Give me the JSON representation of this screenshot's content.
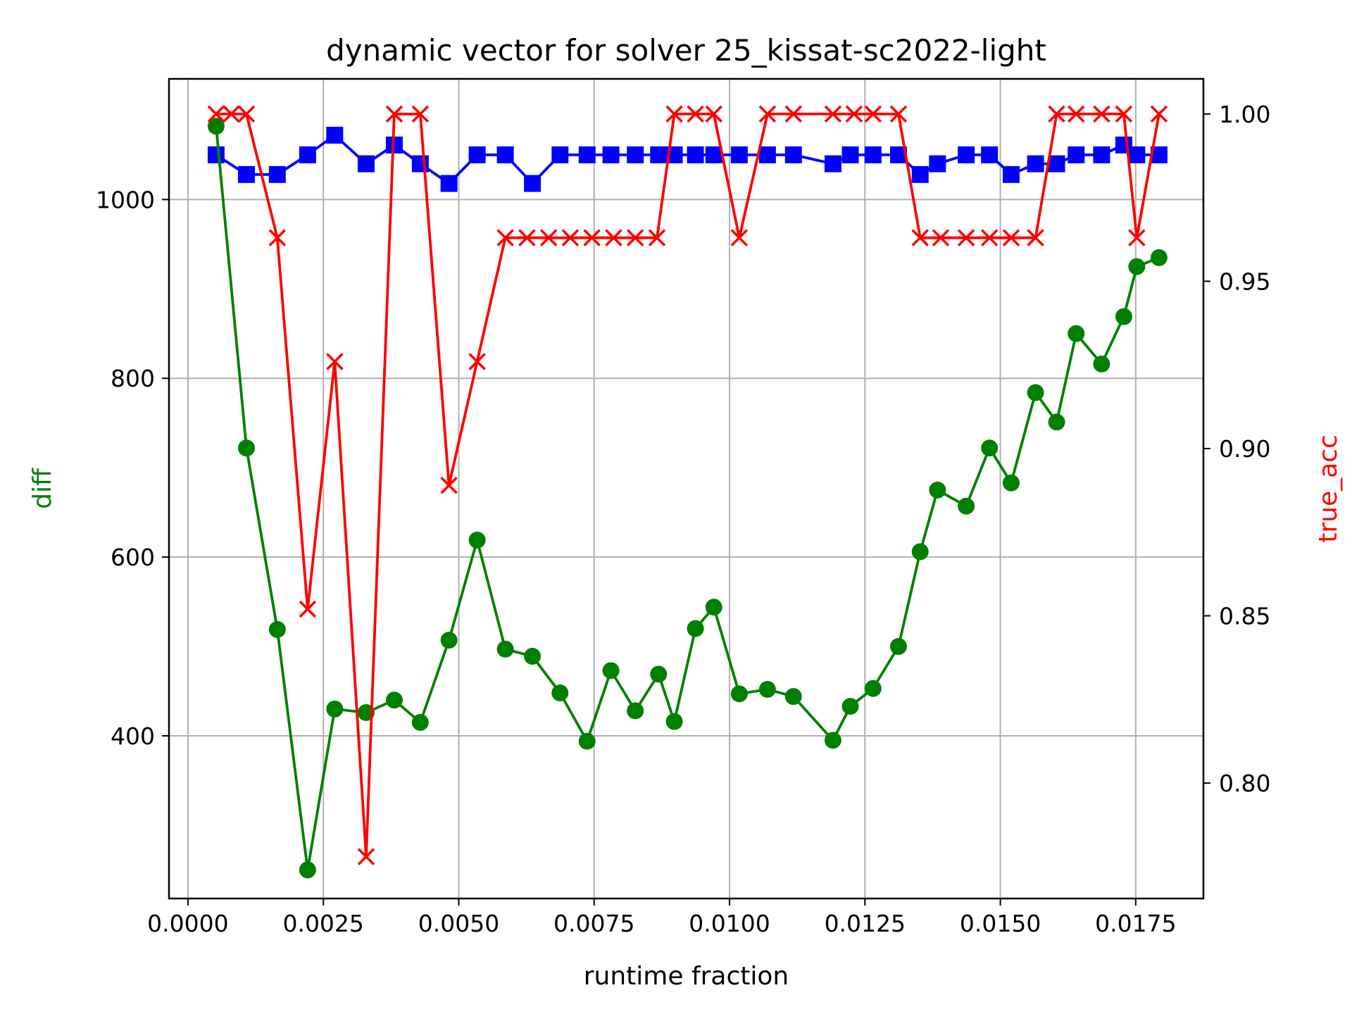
{
  "chart_data": {
    "type": "line",
    "title": "dynamic vector for solver 25_kissat-sc2022-light",
    "xlabel": "runtime fraction",
    "ylabel_left": "diff",
    "ylabel_right": "true_acc",
    "xlim": [
      -0.00035,
      0.01875
    ],
    "ylim_left": [
      218,
      1135
    ],
    "ylim_right": [
      0.7655,
      1.0105
    ],
    "grid": true,
    "x_ticks": [
      "0.0000",
      "0.0025",
      "0.0050",
      "0.0075",
      "0.0100",
      "0.0125",
      "0.0150",
      "0.0175"
    ],
    "x_tick_values": [
      0.0,
      0.0025,
      0.005,
      0.0075,
      0.01,
      0.0125,
      0.015,
      0.0175
    ],
    "y_left_ticks": [
      "400",
      "600",
      "800",
      "1000"
    ],
    "y_left_tick_values": [
      400,
      600,
      800,
      1000
    ],
    "y_right_ticks": [
      "0.80",
      "0.85",
      "0.90",
      "0.95",
      "1.00"
    ],
    "y_right_tick_values": [
      0.8,
      0.85,
      0.9,
      0.95,
      1.0
    ],
    "x": [
      0.00052,
      0.00108,
      0.00165,
      0.00221,
      0.00271,
      0.00329,
      0.00381,
      0.00429,
      0.00482,
      0.00534,
      0.00586,
      0.00636,
      0.00687,
      0.00737,
      0.00781,
      0.00826,
      0.00869,
      0.00898,
      0.00937,
      0.00971,
      0.01018,
      0.0107,
      0.01118,
      0.01191,
      0.01223,
      0.01265,
      0.01312,
      0.01352,
      0.01384,
      0.01437,
      0.0148,
      0.0152,
      0.01565,
      0.01604,
      0.0164,
      0.01687,
      0.01728,
      0.01752,
      0.01793
    ],
    "series": [
      {
        "axis": "left",
        "color": "#008000",
        "marker": "circle",
        "values": [
          1082,
          722,
          519,
          250,
          430,
          426,
          440,
          415,
          507,
          619,
          497,
          489,
          448,
          394,
          473,
          428,
          469,
          416,
          520,
          544,
          447,
          452,
          444,
          395,
          433,
          453,
          500,
          606,
          675,
          657,
          722,
          683,
          784,
          751,
          850,
          816,
          869,
          925,
          935
        ]
      },
      {
        "axis": "left",
        "color": "#0000ff",
        "marker": "square",
        "values": [
          1050,
          1028,
          1028,
          1050,
          1072,
          1040,
          1061,
          1040,
          1018,
          1050,
          1050,
          1018,
          1050,
          1050,
          1050,
          1050,
          1050,
          1050,
          1050,
          1050,
          1050,
          1050,
          1050,
          1040,
          1050,
          1050,
          1050,
          1028,
          1040,
          1050,
          1050,
          1028,
          1040,
          1040,
          1050,
          1050,
          1061,
          1050,
          1050
        ]
      },
      {
        "axis": "right",
        "color": "#ff0000",
        "marker": "x",
        "x": [
          0.00052,
          0.0008,
          0.00108,
          0.00165,
          0.00221,
          0.00271,
          0.00329,
          0.00381,
          0.00429,
          0.00482,
          0.00534,
          0.00586,
          0.00626,
          0.00666,
          0.00706,
          0.00746,
          0.00786,
          0.00826,
          0.00866,
          0.00898,
          0.00937,
          0.00971,
          0.01018,
          0.0107,
          0.01118,
          0.01191,
          0.0123,
          0.01265,
          0.01312,
          0.01352,
          0.0139,
          0.01437,
          0.0148,
          0.0152,
          0.01565,
          0.01604,
          0.0164,
          0.01687,
          0.01728,
          0.01752,
          0.01793
        ],
        "values": [
          1.0,
          1.0,
          1.0,
          0.963,
          0.852,
          0.926,
          0.778,
          1.0,
          1.0,
          0.889,
          0.926,
          0.963,
          0.963,
          0.963,
          0.963,
          0.963,
          0.963,
          0.963,
          0.963,
          1.0,
          1.0,
          1.0,
          0.963,
          1.0,
          1.0,
          1.0,
          1.0,
          1.0,
          1.0,
          0.963,
          0.963,
          0.963,
          0.963,
          0.963,
          0.963,
          1.0,
          1.0,
          1.0,
          1.0,
          0.963,
          1.0
        ]
      }
    ]
  }
}
